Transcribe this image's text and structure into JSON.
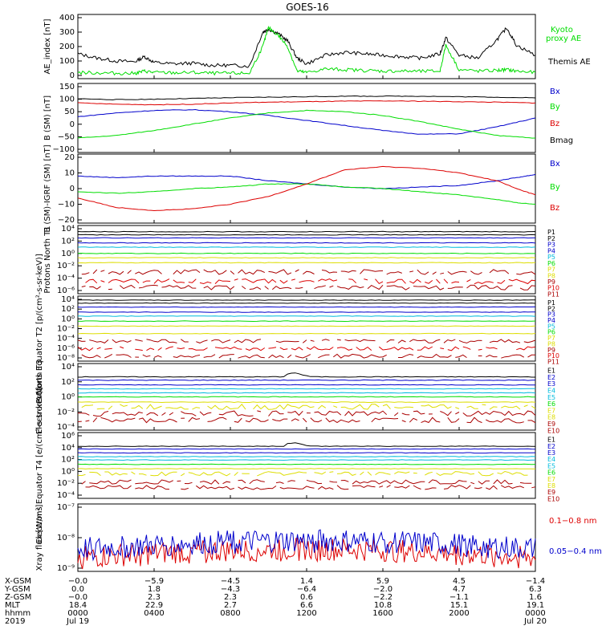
{
  "title": "GOES-16",
  "colors": {
    "black": "#000000",
    "green": "#00dd00",
    "blue": "#0000cc",
    "red": "#dd0000",
    "darkred": "#aa0000",
    "cyan": "#00bbdd",
    "yellow": "#dddd00"
  },
  "chart_data": [
    {
      "type": "line",
      "ylabel": "AE_index [nT]",
      "ylim": [
        0,
        400
      ],
      "yticks": [
        "400",
        "300",
        "200",
        "100",
        "0"
      ],
      "x_hours": [
        0,
        1,
        2,
        3,
        3.5,
        4,
        5,
        6,
        7,
        8,
        9,
        9.7,
        10,
        10.5,
        11,
        11.5,
        12,
        13,
        14,
        15,
        16,
        17,
        18,
        19,
        19.3,
        20,
        21,
        22,
        22.5,
        23,
        24
      ],
      "series": [
        {
          "name": "Themis AE",
          "values": [
            150,
            120,
            100,
            95,
            130,
            90,
            80,
            85,
            70,
            70,
            65,
            300,
            320,
            290,
            240,
            120,
            80,
            140,
            160,
            150,
            140,
            130,
            120,
            150,
            260,
            140,
            120,
            250,
            330,
            210,
            140
          ]
        },
        {
          "name": "Kyoto proxy AE",
          "values": [
            20,
            18,
            15,
            15,
            30,
            20,
            18,
            20,
            15,
            15,
            15,
            200,
            330,
            280,
            200,
            30,
            20,
            45,
            40,
            35,
            30,
            30,
            28,
            30,
            210,
            40,
            30,
            35,
            40,
            30,
            20
          ]
        }
      ],
      "legend": [
        "Kyoto proxy AE",
        "Themis AE"
      ]
    },
    {
      "type": "line",
      "ylabel": "B (SM) [nT]",
      "ylim": [
        -100,
        150
      ],
      "yticks": [
        "150",
        "100",
        "50",
        "0",
        "−50",
        "−100"
      ],
      "x_hours": [
        0,
        2,
        4,
        6,
        8,
        10,
        12,
        14,
        16,
        18,
        20,
        22,
        24
      ],
      "series": [
        {
          "name": "Bx",
          "values": [
            30,
            45,
            55,
            58,
            50,
            35,
            15,
            -5,
            -25,
            -40,
            -38,
            -10,
            25
          ]
        },
        {
          "name": "By",
          "values": [
            -55,
            -45,
            -25,
            0,
            25,
            45,
            55,
            50,
            35,
            10,
            -20,
            -45,
            -55
          ]
        },
        {
          "name": "Bz",
          "values": [
            85,
            80,
            78,
            80,
            85,
            88,
            90,
            92,
            93,
            92,
            90,
            88,
            85
          ]
        },
        {
          "name": "Bmag",
          "values": [
            102,
            98,
            100,
            103,
            106,
            108,
            110,
            112,
            112,
            112,
            110,
            108,
            105
          ]
        }
      ]
    },
    {
      "type": "line",
      "ylabel": "B (SM)-IGRF (SM) [nT]",
      "ylim": [
        -20,
        20
      ],
      "yticks": [
        "20",
        "10",
        "0",
        "−10",
        "−20"
      ],
      "x_hours": [
        0,
        2,
        4,
        6,
        8,
        10,
        12,
        14,
        16,
        18,
        20,
        22,
        23,
        24
      ],
      "series": [
        {
          "name": "Bx",
          "values": [
            8,
            7,
            8,
            8,
            8,
            5,
            3,
            1,
            0,
            1,
            2,
            5,
            7,
            9
          ]
        },
        {
          "name": "By",
          "values": [
            -2,
            -3,
            -2,
            0,
            1,
            3,
            3,
            1,
            0,
            -2,
            -4,
            -7,
            -9,
            -10
          ]
        },
        {
          "name": "Bz",
          "values": [
            -6,
            -12,
            -14,
            -13,
            -10,
            -5,
            3,
            12,
            14,
            13,
            10,
            5,
            0,
            -4
          ]
        }
      ]
    },
    {
      "type": "line",
      "ylog": true,
      "ylabel": "Protons North T1",
      "yticks": [
        "10⁴",
        "10²",
        "10⁰",
        "10⁻²",
        "10⁻⁴",
        "10⁻⁶"
      ],
      "ylim_exp": [
        -7,
        4
      ],
      "series": [
        {
          "name": "P1",
          "level": 3.0
        },
        {
          "name": "P2",
          "level": 2.5
        },
        {
          "name": "P3",
          "level": 2.0
        },
        {
          "name": "P4",
          "level": 1.2
        },
        {
          "name": "P5",
          "level": 0.5
        },
        {
          "name": "P6",
          "level": -0.5
        },
        {
          "name": "P7",
          "level": -1.2
        },
        {
          "name": "P8",
          "level": -2.0
        },
        {
          "name": "P9",
          "level": -3.5
        },
        {
          "name": "P10",
          "level": -5.0
        },
        {
          "name": "P11",
          "level": -6.0
        }
      ]
    },
    {
      "type": "line",
      "ylog": true,
      "ylabel": "Protons Equator T2 [p/(cm²-s-sr-keV)]",
      "yticks": [
        "10⁴",
        "10²",
        "10⁰",
        "10⁻²",
        "10⁻⁴",
        "10⁻⁶",
        "10⁻⁸"
      ],
      "ylim_exp": [
        -9,
        4
      ],
      "series": [
        {
          "name": "P1",
          "level": 3.2
        },
        {
          "name": "P2",
          "level": 2.6
        },
        {
          "name": "P3",
          "level": 1.8
        },
        {
          "name": "P4",
          "level": 0.8
        },
        {
          "name": "P5",
          "level": 0.0
        },
        {
          "name": "P6",
          "level": -1.0
        },
        {
          "name": "P7",
          "level": -2.0
        },
        {
          "name": "P8",
          "level": -3.5
        },
        {
          "name": "P9",
          "level": -5.0
        },
        {
          "name": "P10",
          "level": -6.5
        },
        {
          "name": "P11",
          "level": -8.0
        }
      ]
    },
    {
      "type": "line",
      "ylog": true,
      "ylabel": "Electrons North T3",
      "yticks": [
        "10⁴",
        "10²",
        "10⁰",
        "10⁻²",
        "10⁻⁴"
      ],
      "ylim_exp": [
        -4,
        6
      ],
      "series": [
        {
          "name": "E1",
          "level": 4.0
        },
        {
          "name": "E2",
          "level": 3.5
        },
        {
          "name": "E3",
          "level": 2.8
        },
        {
          "name": "E4",
          "level": 2.2
        },
        {
          "name": "E5",
          "level": 1.6
        },
        {
          "name": "E6",
          "level": 1.0
        },
        {
          "name": "E7",
          "level": 0.2
        },
        {
          "name": "E8",
          "level": -0.5
        },
        {
          "name": "E9",
          "level": -1.5
        },
        {
          "name": "E10",
          "level": -2.5
        }
      ]
    },
    {
      "type": "line",
      "ylog": true,
      "ylabel": "Electrons Equator T4 [e/(cm²-s-sr-keV)]",
      "yticks": [
        "10⁶",
        "10⁴",
        "10²",
        "10⁰",
        "10⁻²",
        "10⁻⁴"
      ],
      "ylim_exp": [
        -5,
        7
      ],
      "series": [
        {
          "name": "E1",
          "level": 4.5
        },
        {
          "name": "E2",
          "level": 4.0
        },
        {
          "name": "E3",
          "level": 3.3
        },
        {
          "name": "E4",
          "level": 2.6
        },
        {
          "name": "E5",
          "level": 2.0
        },
        {
          "name": "E6",
          "level": 1.2
        },
        {
          "name": "E7",
          "level": 0.4
        },
        {
          "name": "E8",
          "level": -0.5
        },
        {
          "name": "E9",
          "level": -2.0
        },
        {
          "name": "E10",
          "level": -3.0
        }
      ]
    },
    {
      "type": "line",
      "ylog": true,
      "ylabel": "Xray flux [W/m²]",
      "yticks": [
        "10⁻⁷",
        "10⁻⁸",
        "10⁻⁹"
      ],
      "ylim_exp": [
        -9,
        -7
      ],
      "series": [
        {
          "name": "0.1−0.8 nm",
          "level": -8.6
        },
        {
          "name": "0.05−0.4 nm",
          "level": -8.35
        }
      ]
    }
  ],
  "xaxis": {
    "row_labels": [
      "X-GSM",
      "Y-GSM",
      "Z-GSM",
      "MLT",
      "hhmm",
      "2019"
    ],
    "columns": [
      {
        "x_hours": 0,
        "values": [
          "−0.0",
          "0.0",
          "−0.0",
          "18.4",
          "0000",
          "Jul 19"
        ]
      },
      {
        "x_hours": 4,
        "values": [
          "−5.9",
          "1.8",
          "2.3",
          "22.9",
          "0400",
          ""
        ]
      },
      {
        "x_hours": 8,
        "values": [
          "−4.5",
          "−4.3",
          "2.3",
          "2.7",
          "0800",
          ""
        ]
      },
      {
        "x_hours": 12,
        "values": [
          "1.4",
          "−6.4",
          "0.6",
          "6.6",
          "1200",
          ""
        ]
      },
      {
        "x_hours": 16,
        "values": [
          "5.9",
          "−2.0",
          "−2.2",
          "10.8",
          "1600",
          ""
        ]
      },
      {
        "x_hours": 20,
        "values": [
          "4.5",
          "4.7",
          "−1.1",
          "15.1",
          "2000",
          ""
        ]
      },
      {
        "x_hours": 24,
        "values": [
          "−1.4",
          "6.3",
          "1.6",
          "19.1",
          "0000",
          "Jul 20"
        ]
      }
    ]
  }
}
